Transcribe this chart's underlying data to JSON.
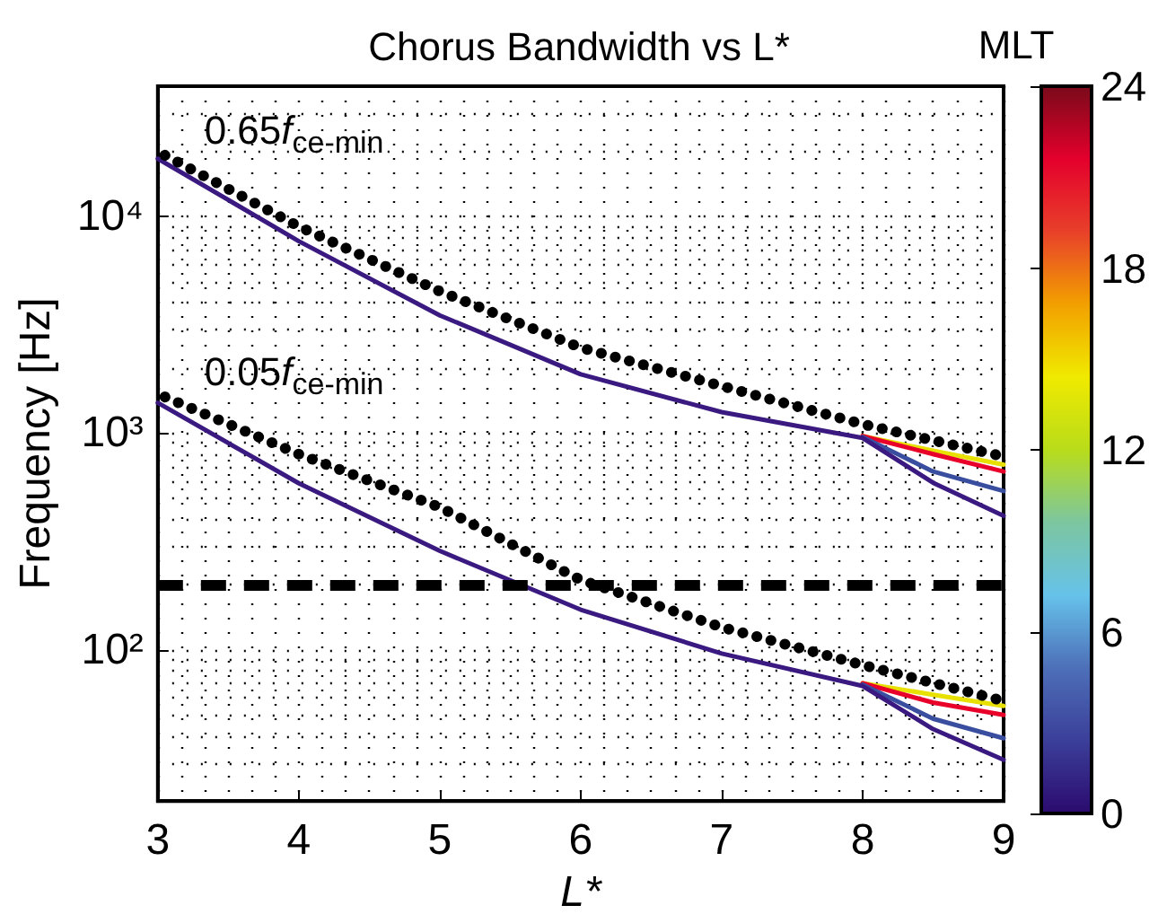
{
  "chart_data": {
    "type": "line",
    "title": "Chorus Bandwidth vs L*",
    "xlabel": "L*",
    "ylabel": "Frequency [Hz]",
    "clabel": "MLT",
    "x": [
      3,
      4,
      5,
      6,
      7,
      8,
      8.5,
      9
    ],
    "series": [
      {
        "color": "#e8e000",
        "values": [
          null,
          null,
          null,
          null,
          null,
          970,
          830,
          715
        ]
      },
      {
        "color": "#e8002a",
        "values": [
          null,
          null,
          null,
          null,
          null,
          970,
          800,
          665
        ]
      },
      {
        "color": "#3a4ea0",
        "values": [
          null,
          null,
          null,
          null,
          null,
          960,
          665,
          540
        ]
      },
      {
        "color": "#3a1a80",
        "values": [
          18500,
          7700,
          3500,
          1870,
          1250,
          950,
          590,
          415
        ]
      },
      {
        "color": "#e8e000",
        "values": [
          null,
          null,
          null,
          null,
          null,
          70,
          62,
          55
        ]
      },
      {
        "color": "#e8002a",
        "values": [
          null,
          null,
          null,
          null,
          null,
          70,
          57,
          50
        ]
      },
      {
        "color": "#3a4ea0",
        "values": [
          null,
          null,
          null,
          null,
          null,
          69,
          48,
          39
        ]
      },
      {
        "color": "#3a1a80",
        "values": [
          1380,
          587,
          286,
          153,
          96,
          68,
          43,
          31
        ]
      },
      {
        "name": "0.65f$_{ce-min}$",
        "color": "#000000",
        "line_style": "dotted",
        "x": [
          3.05,
          4,
          5,
          6,
          7,
          8,
          9
        ],
        "values": [
          19200,
          9000,
          4520,
          2480,
          1650,
          1100,
          780
        ]
      },
      {
        "name": "0.05f$_{ce-min}$",
        "color": "#000000",
        "line_style": "dotted",
        "x": [
          3.05,
          4,
          5,
          6,
          7,
          8,
          9
        ],
        "values": [
          1470,
          800,
          455,
          210,
          127,
          85,
          58
        ]
      }
    ],
    "ref_lines": [
      {
        "axis": "y",
        "value": 200,
        "color": "#000000",
        "line_style": "dashed"
      }
    ],
    "xlim": [
      3,
      9
    ],
    "xticks": [
      3,
      4,
      5,
      6,
      7,
      8,
      9
    ],
    "ylim": [
      20,
      40000
    ],
    "yticks": [
      {
        "value": 100,
        "label": "10²"
      },
      {
        "value": 1000,
        "label": "10³"
      },
      {
        "value": 10000,
        "label": "10⁴"
      }
    ],
    "log": "y",
    "grid": true,
    "legend": false,
    "clim": [
      0,
      24
    ],
    "cticks": [
      0,
      6,
      12,
      18,
      24
    ]
  }
}
